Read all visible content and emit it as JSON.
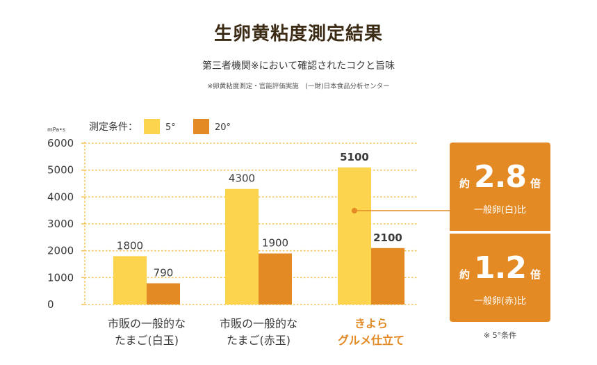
{
  "title": "生卵黄粘度測定結果",
  "subtitle": "第三者機関※において確認されたコクと旨味",
  "note": "※卵黄粘度測定・官能評価実施　(一財)日本食品分析センター",
  "chart_data": {
    "type": "bar",
    "yunit": "mPa•s",
    "ylim": [
      0,
      6000
    ],
    "yticks": [
      "0",
      "1000",
      "2000",
      "3000",
      "4000",
      "5000",
      "6000"
    ],
    "legend_title": "測定条件：",
    "categories": [
      {
        "line1": "市販の一般的な",
        "line2": "たまご(白玉)",
        "highlight": false
      },
      {
        "line1": "市販の一般的な",
        "line2": "たまご(赤玉)",
        "highlight": false
      },
      {
        "line1": "きよら",
        "line2": "グルメ仕立て",
        "highlight": true
      }
    ],
    "series": [
      {
        "name": "5°",
        "color": "#fdd44e",
        "values": [
          1800,
          4300,
          5100
        ],
        "labels": [
          "1800",
          "4300",
          "5100"
        ]
      },
      {
        "name": "20°",
        "color": "#e48a25",
        "values": [
          790,
          1900,
          2100
        ],
        "labels": [
          "790",
          "1900",
          "2100"
        ]
      }
    ],
    "grid": true,
    "highlight_color": "#e48a25",
    "axis_color": "#f4c45a"
  },
  "badges": [
    {
      "pre": "約",
      "num": "2.8",
      "post": "倍",
      "sub": "一般卵(白)比"
    },
    {
      "pre": "約",
      "num": "1.2",
      "post": "倍",
      "sub": "一般卵(赤)比"
    }
  ],
  "badge_footnote": "※ 5°条件"
}
